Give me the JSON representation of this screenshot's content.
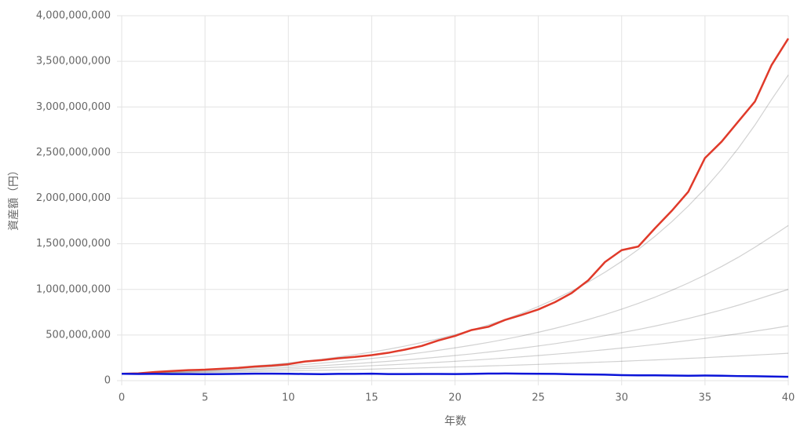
{
  "chart_data": {
    "type": "line",
    "x_label": "年数",
    "y_label": "資産額（円）",
    "x": [
      0,
      1,
      2,
      3,
      4,
      5,
      6,
      7,
      8,
      9,
      10,
      11,
      12,
      13,
      14,
      15,
      16,
      17,
      18,
      19,
      20,
      21,
      22,
      23,
      24,
      25,
      26,
      27,
      28,
      29,
      30,
      31,
      32,
      33,
      34,
      35,
      36,
      37,
      38,
      39,
      40
    ],
    "xlim": [
      0,
      40
    ],
    "xticks": [
      0,
      5,
      10,
      15,
      20,
      25,
      30,
      35,
      40
    ],
    "ylim": [
      0,
      4000000000
    ],
    "yticks": [
      {
        "value": 0,
        "label": "0"
      },
      {
        "value": 500000000,
        "label": "500,000,000"
      },
      {
        "value": 1000000000,
        "label": "1,000,000,000"
      },
      {
        "value": 1500000000,
        "label": "1,500,000,000"
      },
      {
        "value": 2000000000,
        "label": "2,000,000,000"
      },
      {
        "value": 2500000000,
        "label": "2,500,000,000"
      },
      {
        "value": 3000000000,
        "label": "3,000,000,000"
      },
      {
        "value": 3500000000,
        "label": "3,500,000,000"
      },
      {
        "value": 4000000000,
        "label": "4,000,000,000"
      }
    ],
    "grid": true,
    "series": [
      {
        "color": "rgba(0,0,0,0.18)",
        "values": [
          75000000,
          82000000,
          91000000,
          100000000,
          110000000,
          121000000,
          133000000,
          146000000,
          161000000,
          177000000,
          194000000,
          214000000,
          235000000,
          259000000,
          285000000,
          313000000,
          344000000,
          379000000,
          417000000,
          458000000,
          504000000,
          555000000,
          610000000,
          671000000,
          738000000,
          812000000,
          893000000,
          982000000,
          1080000000,
          1188000000,
          1307000000,
          1438000000,
          1582000000,
          1740000000,
          1914000000,
          2105000000,
          2316000000,
          2547000000,
          2802000000,
          3082000000,
          3350000000
        ]
      },
      {
        "color": "rgba(0,0,0,0.18)",
        "values": [
          75000000,
          81000000,
          88000000,
          95000000,
          103000000,
          111000000,
          120000000,
          130000000,
          140000000,
          152000000,
          164000000,
          177000000,
          192000000,
          208000000,
          225000000,
          243000000,
          262000000,
          284000000,
          307000000,
          332000000,
          359000000,
          388000000,
          419000000,
          453000000,
          490000000,
          530000000,
          573000000,
          620000000,
          670000000,
          724000000,
          783000000,
          847000000,
          915000000,
          990000000,
          1070000000,
          1157000000,
          1251000000,
          1352000000,
          1462000000,
          1580000000,
          1700000000
        ]
      },
      {
        "color": "rgba(0,0,0,0.18)",
        "values": [
          75000000,
          80000000,
          85000000,
          91000000,
          97000000,
          104000000,
          111000000,
          118000000,
          126000000,
          135000000,
          144000000,
          153000000,
          164000000,
          175000000,
          186000000,
          199000000,
          212000000,
          226000000,
          242000000,
          258000000,
          275000000,
          293000000,
          313000000,
          334000000,
          356000000,
          380000000,
          405000000,
          433000000,
          462000000,
          493000000,
          526000000,
          561000000,
          598000000,
          638000000,
          681000000,
          727000000,
          775000000,
          827000000,
          883000000,
          942000000,
          1000000000
        ]
      },
      {
        "color": "rgba(0,0,0,0.18)",
        "values": [
          75000000,
          79000000,
          83000000,
          88000000,
          92000000,
          97000000,
          102000000,
          108000000,
          114000000,
          120000000,
          126000000,
          133000000,
          140000000,
          147000000,
          155000000,
          164000000,
          172000000,
          181000000,
          191000000,
          201000000,
          212000000,
          223000000,
          235000000,
          248000000,
          261000000,
          275000000,
          290000000,
          305000000,
          322000000,
          339000000,
          357000000,
          376000000,
          396000000,
          417000000,
          440000000,
          463000000,
          488000000,
          514000000,
          542000000,
          570000000,
          600000000
        ]
      },
      {
        "color": "rgba(0,0,0,0.18)",
        "values": [
          75000000,
          78000000,
          80000000,
          83000000,
          86000000,
          89000000,
          92000000,
          96000000,
          99000000,
          103000000,
          106000000,
          110000000,
          114000000,
          118000000,
          122000000,
          126000000,
          131000000,
          135000000,
          140000000,
          145000000,
          150000000,
          155000000,
          161000000,
          166000000,
          172000000,
          178000000,
          185000000,
          191000000,
          198000000,
          205000000,
          212000000,
          220000000,
          227000000,
          235000000,
          244000000,
          252000000,
          261000000,
          270000000,
          280000000,
          290000000,
          300000000
        ]
      },
      {
        "color": "#e03a2a",
        "values": [
          75000000,
          80000000,
          95000000,
          105000000,
          115000000,
          120000000,
          130000000,
          140000000,
          155000000,
          165000000,
          180000000,
          210000000,
          225000000,
          245000000,
          260000000,
          280000000,
          305000000,
          340000000,
          380000000,
          440000000,
          490000000,
          555000000,
          590000000,
          665000000,
          720000000,
          780000000,
          860000000,
          960000000,
          1100000000,
          1300000000,
          1430000000,
          1470000000,
          1670000000,
          1860000000,
          2070000000,
          2440000000,
          2620000000,
          2840000000,
          3060000000,
          3460000000,
          3750000000
        ]
      },
      {
        "color": "#0a14d8",
        "values": [
          75000000,
          73000000,
          74000000,
          72000000,
          72000000,
          71000000,
          72000000,
          74000000,
          76000000,
          76000000,
          75000000,
          73000000,
          71000000,
          74000000,
          74000000,
          76000000,
          72000000,
          72000000,
          73000000,
          73000000,
          72000000,
          74000000,
          77000000,
          78000000,
          76000000,
          75000000,
          74000000,
          70000000,
          68000000,
          66000000,
          60000000,
          58000000,
          58000000,
          56000000,
          54000000,
          56000000,
          54000000,
          50000000,
          48000000,
          45000000,
          42000000
        ]
      }
    ]
  }
}
